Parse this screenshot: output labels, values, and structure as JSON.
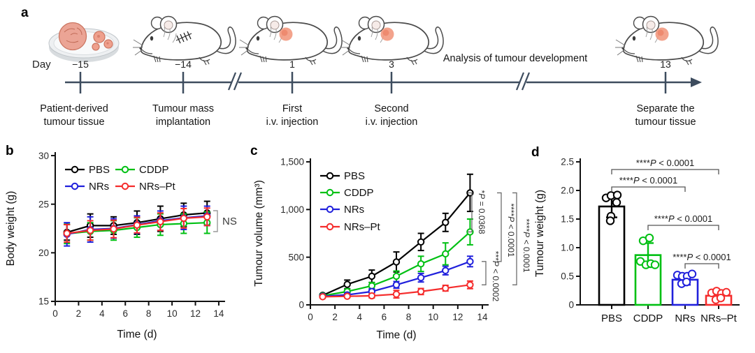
{
  "panel_labels": {
    "a": "a",
    "b": "b",
    "c": "c",
    "d": "d"
  },
  "panel_a": {
    "day_label": "Day",
    "analysis_text": "Analysis of tumour development",
    "timeline_color": "#3d4c5e",
    "events": [
      {
        "day": "−15",
        "caption_line1": "Patient-derived",
        "caption_line2": "tumour tissue",
        "icon": "petri-dish"
      },
      {
        "day": "−14",
        "caption_line1": "Tumour mass",
        "caption_line2": "implantation",
        "icon": "mouse-with-stitches"
      },
      {
        "day": "1",
        "caption_line1": "First",
        "caption_line2": "i.v. injection",
        "icon": "mouse-with-tumour"
      },
      {
        "day": "3",
        "caption_line1": "Second",
        "caption_line2": "i.v. injection",
        "icon": "mouse-with-tumour"
      },
      {
        "day": "13",
        "caption_line1": "Separate the",
        "caption_line2": "tumour tissue",
        "icon": "mouse-with-tumour"
      }
    ]
  },
  "chart_data": [
    {
      "id": "b",
      "type": "line",
      "xlabel": "Time (d)",
      "ylabel": "Body weight (g)",
      "x": [
        1,
        3,
        5,
        7,
        9,
        11,
        13
      ],
      "xlim": [
        0,
        15
      ],
      "xticks": [
        0,
        2,
        4,
        6,
        8,
        10,
        12,
        14
      ],
      "ylim": [
        15,
        30
      ],
      "yticks": [
        15,
        20,
        25,
        30
      ],
      "legend_position": "top-left two-column",
      "annotation": "NS",
      "series": [
        {
          "name": "PBS",
          "color": "#000000",
          "values": [
            22.1,
            22.8,
            22.8,
            23.1,
            23.5,
            23.9,
            24.1
          ],
          "errors": [
            0.8,
            1.2,
            0.9,
            1.2,
            1.3,
            1.2,
            1.2
          ]
        },
        {
          "name": "CDDP",
          "color": "#00c013",
          "values": [
            21.95,
            22.2,
            22.3,
            22.6,
            22.9,
            23.0,
            23.1
          ],
          "errors": [
            1.0,
            0.9,
            1.0,
            1.0,
            1.1,
            1.0,
            1.1
          ]
        },
        {
          "name": "NRs",
          "color": "#2020dc",
          "values": [
            21.9,
            22.4,
            22.5,
            22.9,
            23.3,
            23.6,
            23.8
          ],
          "errors": [
            1.2,
            1.3,
            1.0,
            0.9,
            1.0,
            1.2,
            1.0
          ]
        },
        {
          "name": "NRs–Pt",
          "color": "#f52c2c",
          "values": [
            22.0,
            22.3,
            22.45,
            22.85,
            23.2,
            23.55,
            23.7
          ],
          "errors": [
            0.9,
            1.0,
            0.9,
            0.8,
            0.9,
            1.0,
            0.9
          ]
        }
      ]
    },
    {
      "id": "c",
      "type": "line",
      "xlabel": "Time (d)",
      "ylabel": "Tumour volume (mm³)",
      "x": [
        1,
        3,
        5,
        7,
        9,
        11,
        13
      ],
      "xlim": [
        0,
        15
      ],
      "xticks": [
        0,
        2,
        4,
        6,
        8,
        10,
        12,
        14
      ],
      "ylim": [
        0,
        1500
      ],
      "yticks": [
        0,
        500,
        1000,
        1500
      ],
      "ytick_labels": [
        "0",
        "500",
        "1,000",
        "1,500"
      ],
      "legend_position": "top-left vertical",
      "series": [
        {
          "name": "PBS",
          "color": "#000000",
          "values": [
            100,
            215,
            300,
            450,
            660,
            865,
            1175
          ],
          "errors": [
            15,
            45,
            65,
            105,
            90,
            95,
            195
          ]
        },
        {
          "name": "CDDP",
          "color": "#00c013",
          "values": [
            95,
            140,
            200,
            300,
            430,
            535,
            765
          ],
          "errors": [
            12,
            25,
            35,
            55,
            80,
            115,
            135
          ]
        },
        {
          "name": "NRs",
          "color": "#2020dc",
          "values": [
            90,
            105,
            140,
            210,
            285,
            360,
            455
          ],
          "errors": [
            10,
            18,
            28,
            35,
            45,
            45,
            55
          ]
        },
        {
          "name": "NRs–Pt",
          "color": "#f52c2c",
          "values": [
            85,
            90,
            95,
            112,
            140,
            175,
            210
          ],
          "errors": [
            10,
            14,
            22,
            40,
            32,
            30,
            40
          ]
        }
      ],
      "significance": [
        {
          "label": "*P = 0.0368",
          "from": "PBS",
          "to": "CDDP"
        },
        {
          "label": "***P < 0.0002",
          "from": "NRs",
          "to": "NRs–Pt"
        },
        {
          "label": "****P < 0.0001",
          "from": "PBS",
          "to": "NRs"
        },
        {
          "label": "****P < 0.0001",
          "from": "PBS",
          "to": "NRs–Pt"
        }
      ]
    },
    {
      "id": "d",
      "type": "bar",
      "ylabel": "Tumour weight (g)",
      "categories": [
        "PBS",
        "CDDP",
        "NRs",
        "NRs–Pt"
      ],
      "colors": [
        "#000000",
        "#00c013",
        "#2020dc",
        "#f52c2c"
      ],
      "values": [
        1.72,
        0.87,
        0.44,
        0.16
      ],
      "errors": [
        0.19,
        0.21,
        0.09,
        0.08
      ],
      "ylim": [
        0,
        2.5
      ],
      "yticks": [
        0,
        0.5,
        1.0,
        1.5,
        2.0,
        2.5
      ],
      "ytick_labels": [
        "0",
        "0.5",
        "1.0",
        "1.5",
        "2.0",
        "2.5"
      ],
      "points": [
        [
          [
            -8,
            1.87
          ],
          [
            -1,
            1.91
          ],
          [
            8,
            1.92
          ],
          [
            7,
            1.79
          ],
          [
            -1,
            1.55
          ],
          [
            -2,
            1.47
          ]
        ],
        [
          [
            -7,
            1.12
          ],
          [
            2,
            1.17
          ],
          [
            -11,
            0.76
          ],
          [
            -3,
            0.7
          ],
          [
            4,
            0.72
          ],
          [
            10,
            0.7
          ]
        ],
        [
          [
            -11,
            0.52
          ],
          [
            -4,
            0.5
          ],
          [
            3,
            0.5
          ],
          [
            10,
            0.54
          ],
          [
            -5,
            0.37
          ],
          [
            2,
            0.4
          ]
        ],
        [
          [
            -10,
            0.21
          ],
          [
            -3,
            0.24
          ],
          [
            4,
            0.2
          ],
          [
            11,
            0.22
          ],
          [
            -4,
            0.09
          ],
          [
            3,
            0.12
          ]
        ]
      ],
      "significance": [
        {
          "label": "****P < 0.0001",
          "from": 0,
          "to": 3
        },
        {
          "label": "****P < 0.0001",
          "from": 0,
          "to": 2
        },
        {
          "label": "****P < 0.0001",
          "from": 1,
          "to": 3
        },
        {
          "label": "****P < 0.0001",
          "from": 2,
          "to": 3
        }
      ]
    }
  ]
}
